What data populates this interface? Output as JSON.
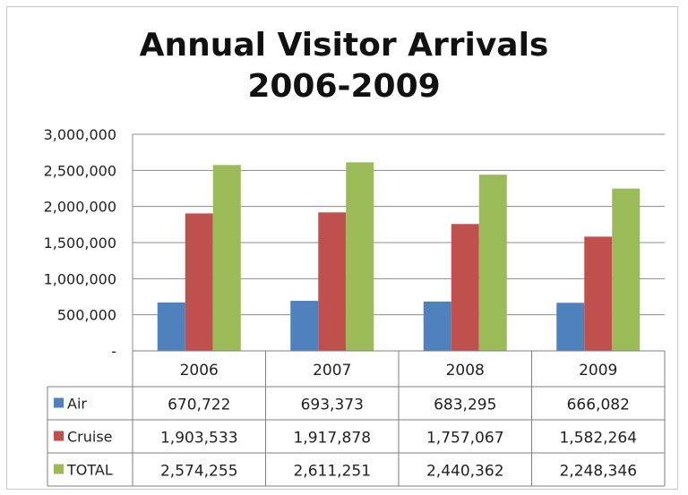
{
  "chart_data": {
    "type": "bar",
    "title": "Annual Visitor Arrivals",
    "subtitle": "2006-2009",
    "categories": [
      "2006",
      "2007",
      "2008",
      "2009"
    ],
    "series": [
      {
        "name": "Air",
        "color": "#4f81bd",
        "values": [
          670722,
          693373,
          683295,
          666082
        ],
        "labels": [
          "670,722",
          "693,373",
          "683,295",
          "666,082"
        ]
      },
      {
        "name": "Cruise",
        "color": "#c0504d",
        "values": [
          1903533,
          1917878,
          1757067,
          1582264
        ],
        "labels": [
          "1,903,533",
          "1,917,878",
          "1,757,067",
          "1,582,264"
        ]
      },
      {
        "name": "TOTAL",
        "color": "#9bbb59",
        "values": [
          2574255,
          2611251,
          2440362,
          2248346
        ],
        "labels": [
          "2,574,255",
          "2,611,251",
          "2,440,362",
          "2,248,346"
        ]
      }
    ],
    "ylim": [
      0,
      3000000
    ],
    "yticks": [
      0,
      500000,
      1000000,
      1500000,
      2000000,
      2500000,
      3000000
    ],
    "ytick_labels": [
      "-",
      "500,000",
      "1,000,000",
      "1,500,000",
      "2,000,000",
      "2,500,000",
      "3,000,000"
    ],
    "grid": true,
    "legend": "data-table",
    "xlabel": "",
    "ylabel": ""
  }
}
